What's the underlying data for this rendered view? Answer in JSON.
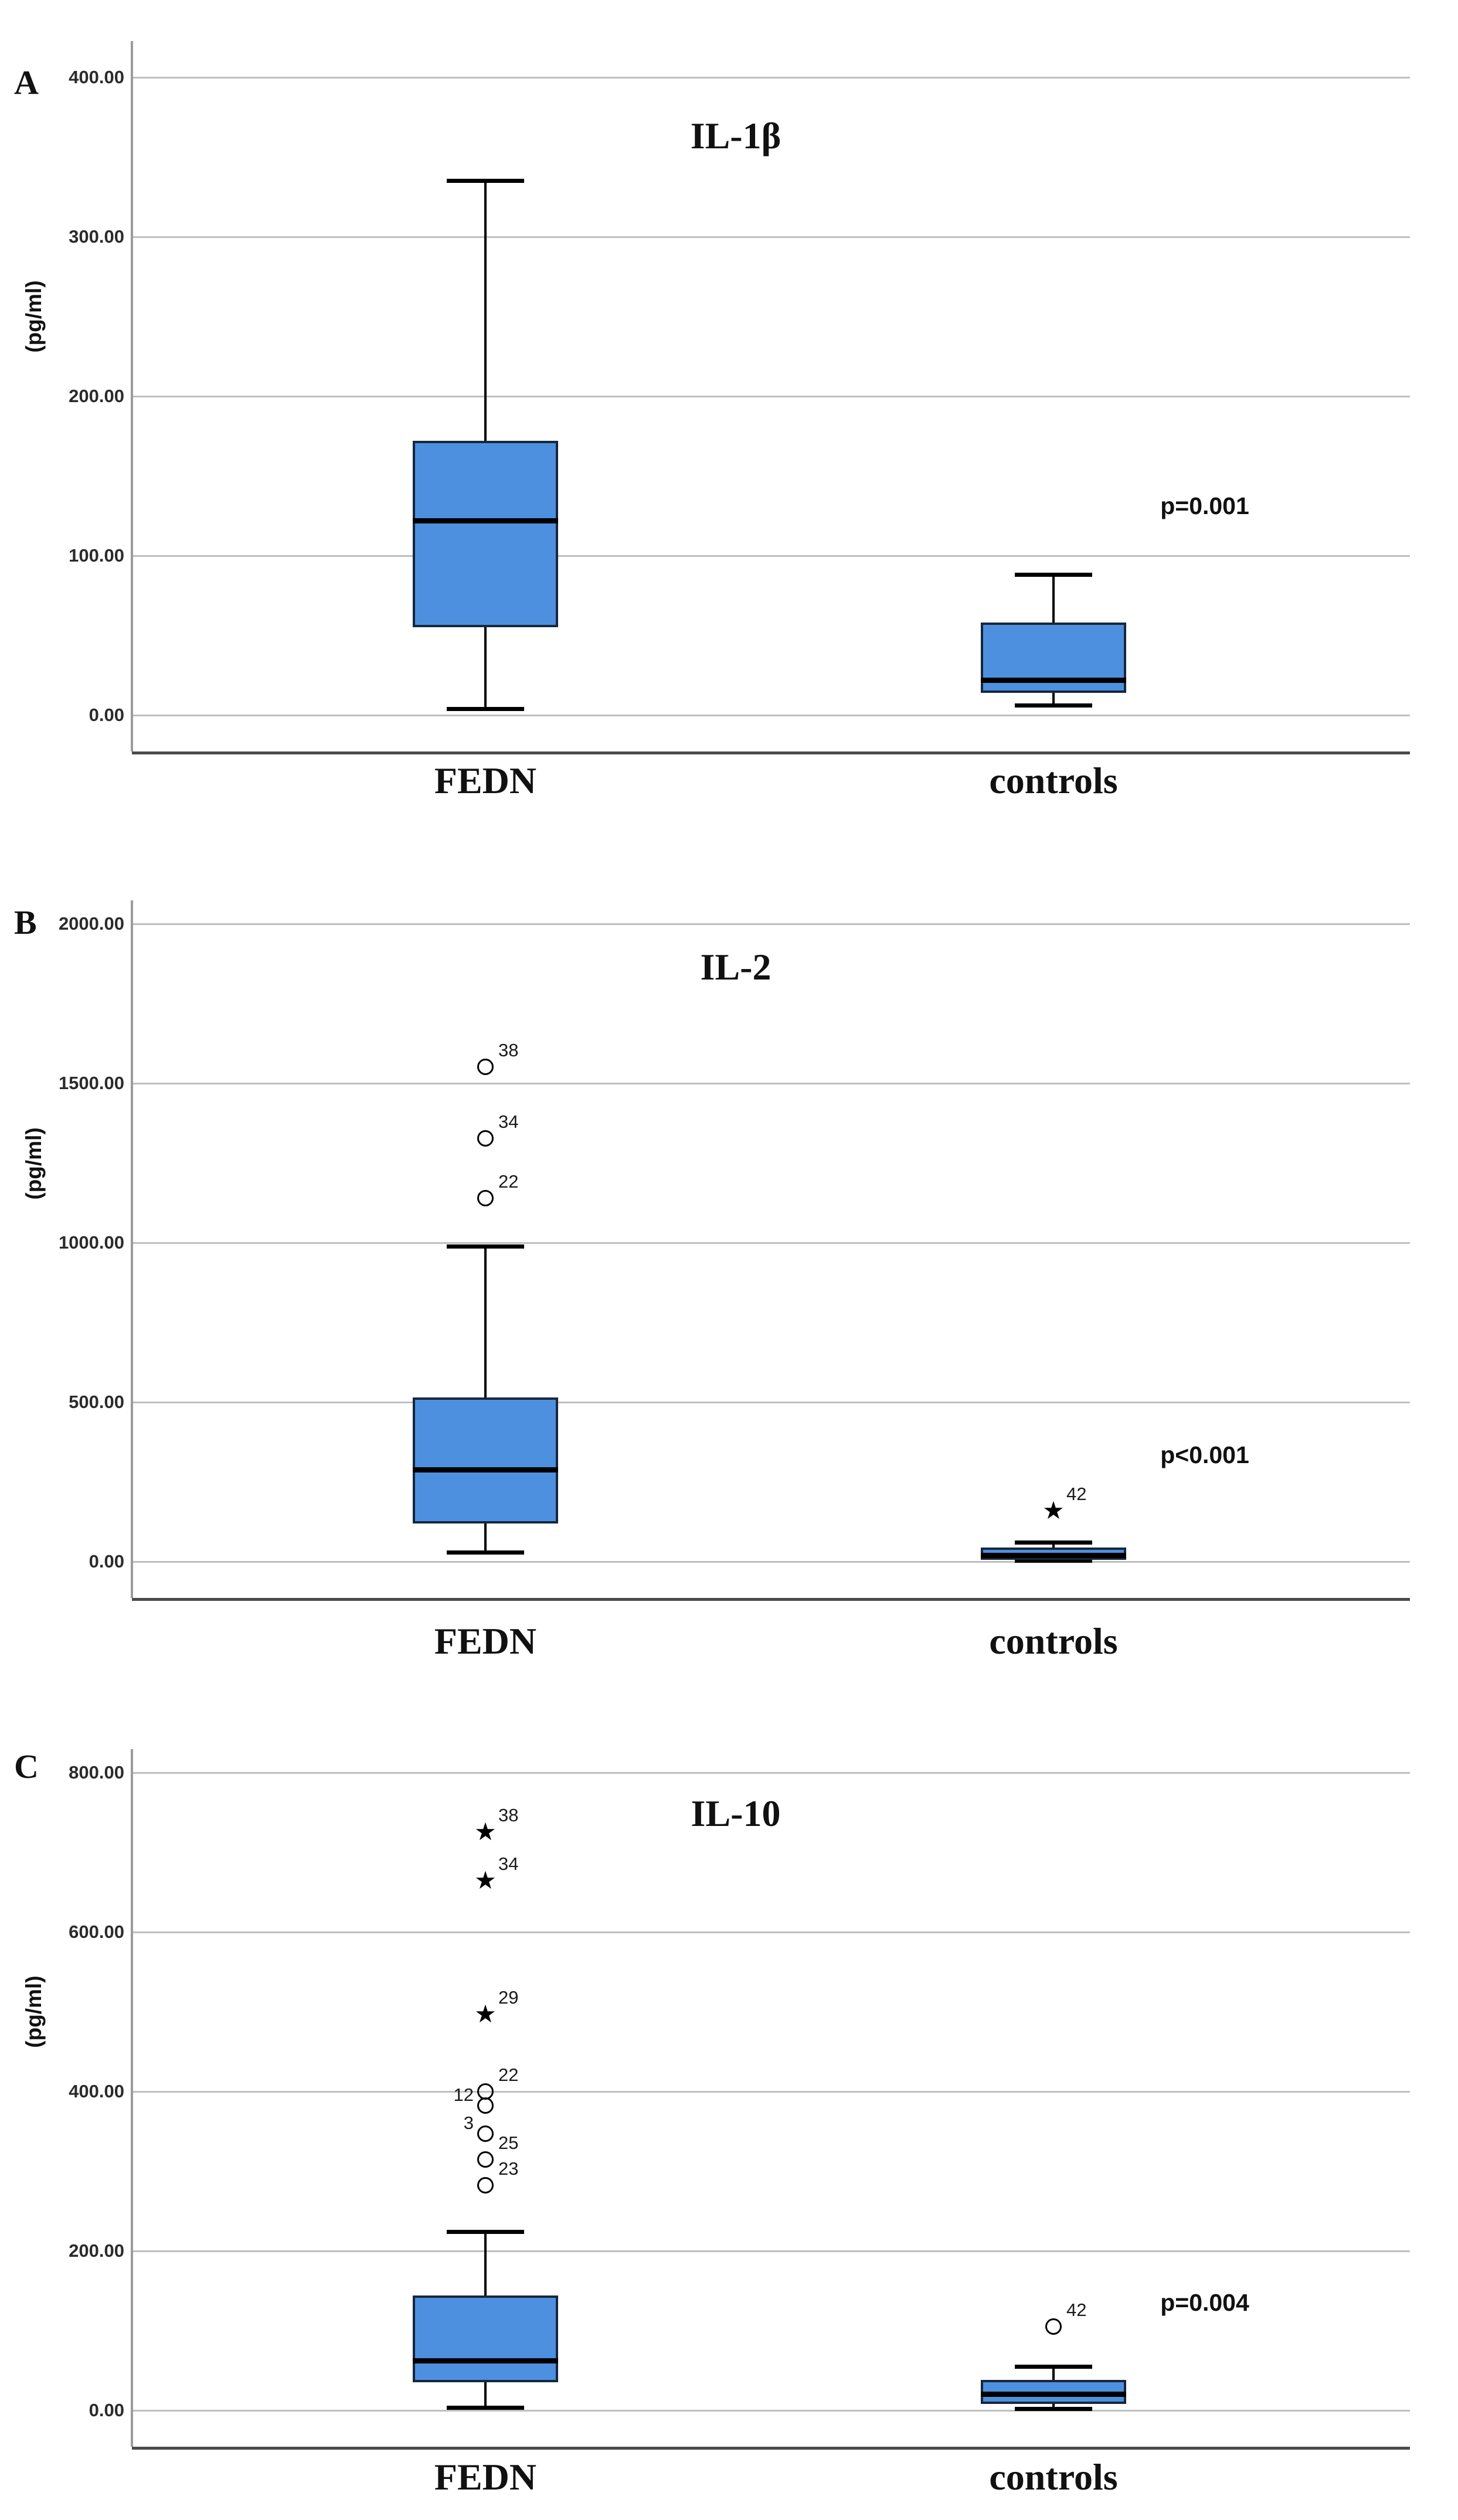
{
  "colors": {
    "box_fill": "#4e90e0",
    "box_border": "#17273b",
    "median": "#000000",
    "whisker": "#000000",
    "gridline": "#bfbfbf",
    "left_axis": "#9b9b9b",
    "bottom_axis": "#4a4a4a",
    "text": "#111111"
  },
  "chart_data": [
    {
      "type": "box",
      "panel_letter": "A",
      "title": "IL-1β",
      "y_axis_label": "(pg/ml)",
      "p_label": "p=0.001",
      "ylim": [
        0,
        400
      ],
      "y_ticks": [
        "400.00",
        "300.00",
        "200.00",
        "100.00",
        "0.00"
      ],
      "grid": true,
      "legend": "none",
      "categories": [
        "FEDN",
        "controls"
      ],
      "series": [
        {
          "name": "FEDN",
          "whisker_low": 4,
          "q1": 55,
          "median": 122,
          "q3": 172,
          "whisker_high": 335,
          "outliers": []
        },
        {
          "name": "controls",
          "whisker_low": 6,
          "q1": 14,
          "median": 22,
          "q3": 58,
          "whisker_high": 88,
          "outliers": []
        }
      ]
    },
    {
      "type": "box",
      "panel_letter": "B",
      "title": "IL-2",
      "y_axis_label": "(pg/ml)",
      "p_label": "p<0.001",
      "ylim": [
        0,
        2000
      ],
      "y_ticks": [
        "2000.00",
        "1500.00",
        "1000.00",
        "500.00",
        "0.00"
      ],
      "grid": true,
      "legend": "none",
      "categories": [
        "FEDN",
        "controls"
      ],
      "series": [
        {
          "name": "FEDN",
          "whisker_low": 28,
          "q1": 120,
          "median": 288,
          "q3": 515,
          "whisker_high": 988,
          "outliers": [
            {
              "case": "22",
              "value": 1140,
              "marker": "circle",
              "label_side": "right"
            },
            {
              "case": "34",
              "value": 1328,
              "marker": "circle",
              "label_side": "right"
            },
            {
              "case": "38",
              "value": 1552,
              "marker": "circle",
              "label_side": "right"
            }
          ]
        },
        {
          "name": "controls",
          "whisker_low": 2,
          "q1": 6,
          "median": 20,
          "q3": 45,
          "whisker_high": 60,
          "outliers": [
            {
              "case": "42",
              "value": 160,
              "marker": "star",
              "label_side": "right"
            }
          ]
        }
      ]
    },
    {
      "type": "box",
      "panel_letter": "C",
      "title": "IL-10",
      "y_axis_label": "(pg/ml)",
      "p_label": "p=0.004",
      "ylim": [
        0,
        800
      ],
      "y_ticks": [
        "800.00",
        "600.00",
        "400.00",
        "200.00",
        "0.00"
      ],
      "grid": true,
      "legend": "none",
      "categories": [
        "FEDN",
        "controls"
      ],
      "series": [
        {
          "name": "FEDN",
          "whisker_low": 3,
          "q1": 35,
          "median": 62,
          "q3": 144,
          "whisker_high": 224,
          "outliers": [
            {
              "case": "23",
              "value": 282,
              "marker": "circle",
              "label_side": "right"
            },
            {
              "case": "25",
              "value": 315,
              "marker": "circle",
              "label_side": "right"
            },
            {
              "case": "3",
              "value": 347,
              "marker": "circle",
              "label_side": "left"
            },
            {
              "case": "12",
              "value": 382,
              "marker": "circle",
              "label_side": "left"
            },
            {
              "case": "22",
              "value": 400,
              "marker": "circle",
              "label_side": "right"
            },
            {
              "case": "29",
              "value": 497,
              "marker": "star",
              "label_side": "right"
            },
            {
              "case": "34",
              "value": 665,
              "marker": "star",
              "label_side": "right"
            },
            {
              "case": "38",
              "value": 726,
              "marker": "star",
              "label_side": "right"
            }
          ]
        },
        {
          "name": "controls",
          "whisker_low": 2,
          "q1": 8,
          "median": 20,
          "q3": 38,
          "whisker_high": 55,
          "outliers": [
            {
              "case": "42",
              "value": 105,
              "marker": "circle",
              "label_side": "right"
            }
          ]
        }
      ]
    }
  ]
}
